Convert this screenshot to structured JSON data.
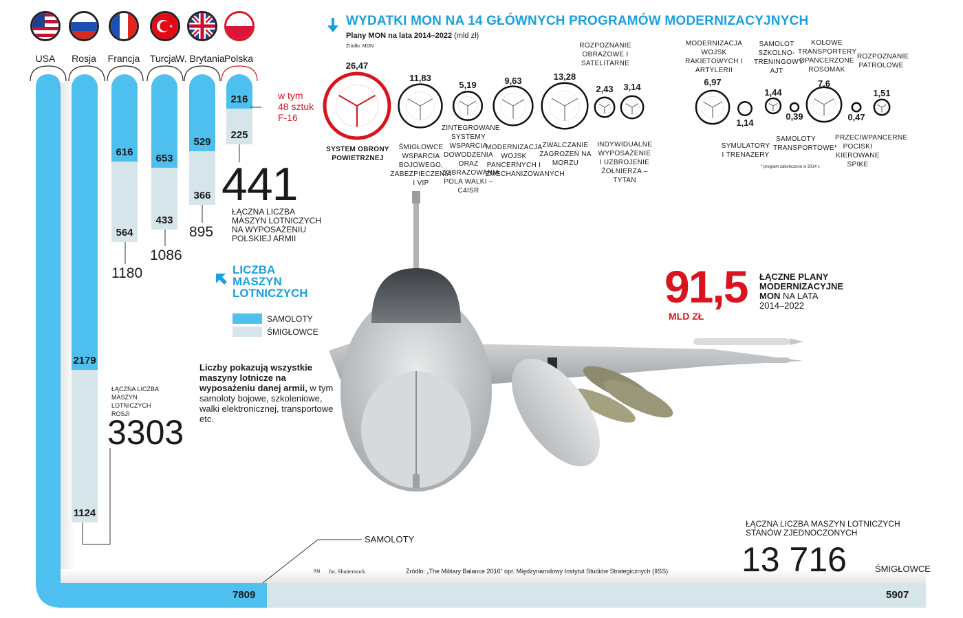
{
  "header": {
    "title": "WYDATKI MON NA 14 GŁÓWNYCH PROGRAMÓW MODERNIZACYJNYCH",
    "subtitle_bold": "Plany MON na lata 2014–2022",
    "subtitle_unit": "(mld zł)",
    "source_small": "Źródło: MON"
  },
  "colors": {
    "planes": "#4ec0ef",
    "helicopters": "#d6e5ea",
    "accent_blue": "#1aa0e0",
    "accent_red": "#d9141e"
  },
  "legend": {
    "title_lines": [
      "LICZBA",
      "MASZYN",
      "LOTNICZYCH"
    ],
    "planes": "SAMOLOTY",
    "helicopters": "ŚMIGŁOWCE"
  },
  "description": {
    "bold": "Liczby pokazują wszystkie maszyny lotnicze na wyposażeniu danej armii,",
    "rest": "w tym samoloty bojowe, szkoleniowe, walki elektronicznej, transportowe etc."
  },
  "poland_note": {
    "line1": "w tym",
    "line2": "48 sztuk",
    "line3": "F-16"
  },
  "poland_total": {
    "value": "441",
    "label_lines": [
      "ŁĄCZNA LICZBA",
      "MASZYN LOTNICZYCH",
      "NA WYPOSAŻENIU",
      "POLSKIEJ ARMII"
    ]
  },
  "russia_total": {
    "value": "3303",
    "label_lines": [
      "ŁĄCZNA LICZBA",
      "MASZYN",
      "LOTNICZYCH",
      "ROSJI"
    ]
  },
  "usa_total": {
    "value": "13 716",
    "label_lines": [
      "ŁĄCZNA LICZBA MASZYN LOTNICZYCH",
      "STANÓW ZJEDNOCZONYCH"
    ],
    "planes_label": "SAMOLOTY",
    "helicopters_label": "ŚMIGŁOWCE"
  },
  "plans_total": {
    "value": "91,5",
    "unit": "MLD ZŁ",
    "label_bold_lines": [
      "ŁĄCZNE PLANY",
      "MODERNIZACYJNE",
      "MON"
    ],
    "label_rest_1": " NA LATA",
    "label_rest_2": "2014–2022"
  },
  "footer": {
    "photo": "fot. Shutterstock",
    "source": "Źródło: „The Military Balance 2016” opr. Międzynarodowy Instytut Studiów Strategicznych (IISS)",
    "initials": "RM"
  },
  "chart_data": [
    {
      "type": "bar",
      "categories": [
        "USA",
        "Rosja",
        "Francja",
        "Turcja",
        "W. Brytania",
        "Polska"
      ],
      "series": [
        {
          "name": "SAMOLOTY",
          "values": [
            7809,
            2179,
            616,
            653,
            529,
            216
          ]
        },
        {
          "name": "ŚMIGŁOWCE",
          "values": [
            5907,
            1124,
            564,
            433,
            366,
            225
          ]
        }
      ],
      "totals": [
        "13 716",
        "3303",
        "1180",
        "1086",
        "895",
        "441"
      ],
      "flags": [
        "usa-flag",
        "russia-flag",
        "france-flag",
        "turkey-flag",
        "uk-flag",
        "poland-flag"
      ]
    },
    {
      "type": "bubble",
      "title": "WYDATKI MON NA 14 GŁÓWNYCH PROGRAMÓW MODERNIZACYJNYCH",
      "unit": "mld zł",
      "programs": [
        {
          "label": "SYSTEM OBRONY POWIETRZNEJ",
          "value": 26.47,
          "display": "26,47"
        },
        {
          "label": "ŚMIGŁOWCE WSPARCIA BOJOWEGO, ZABEZPIECZENIA I VIP",
          "value": 11.83,
          "display": "11,83"
        },
        {
          "label": "ZINTEGROWANE SYSTEMY WSPARCIA DOWODZENIA ORAZ ZOBRAZOWANIA POLA WALKI – C4ISR",
          "value": 5.19,
          "display": "5,19"
        },
        {
          "label": "MODERNIZACJA WOJSK PANCERNYCH I ZMECHANIZOWANYCH",
          "value": 9.63,
          "display": "9,63"
        },
        {
          "label": "ZWALCZANIE ZAGROŻEŃ NA MORZU",
          "value": 13.28,
          "display": "13,28"
        },
        {
          "label": "ROZPOZNANIE OBRAZOWE I SATELITARNE",
          "value": 2.43,
          "display": "2,43"
        },
        {
          "label": "INDYWIDUALNE WYPOSAŻENIE I UZBROJENIE ŻOŁNIERZA – TYTAN",
          "value": 3.14,
          "display": "3,14"
        },
        {
          "label": "MODERNIZACJA WOJSK RAKIETOWYCH I ARTYLERII",
          "value": 6.97,
          "display": "6,97"
        },
        {
          "label": "SYMULATORY I TRENAŻERY",
          "value": 1.14,
          "display": "1,14"
        },
        {
          "label": "SAMOLOT SZKOLNO-TRENINGOWY AJT",
          "value": 1.44,
          "display": "1,44"
        },
        {
          "label": "SAMOLOTY TRANSPORTOWE*",
          "value": 0.39,
          "display": "0,39"
        },
        {
          "label": "KOŁOWE TRANSPORTERY OPANCERZONE ROSOMAK",
          "value": 7.6,
          "display": "7,6"
        },
        {
          "label": "PRZECIWPANCERNE POCISKI KIEROWANE SPIKE",
          "value": 0.47,
          "display": "0,47"
        },
        {
          "label": "ROZPOZNANIE PATROLOWE",
          "value": 1.51,
          "display": "1,51"
        }
      ],
      "footnote": "* program zakończono w 2014 r."
    }
  ]
}
